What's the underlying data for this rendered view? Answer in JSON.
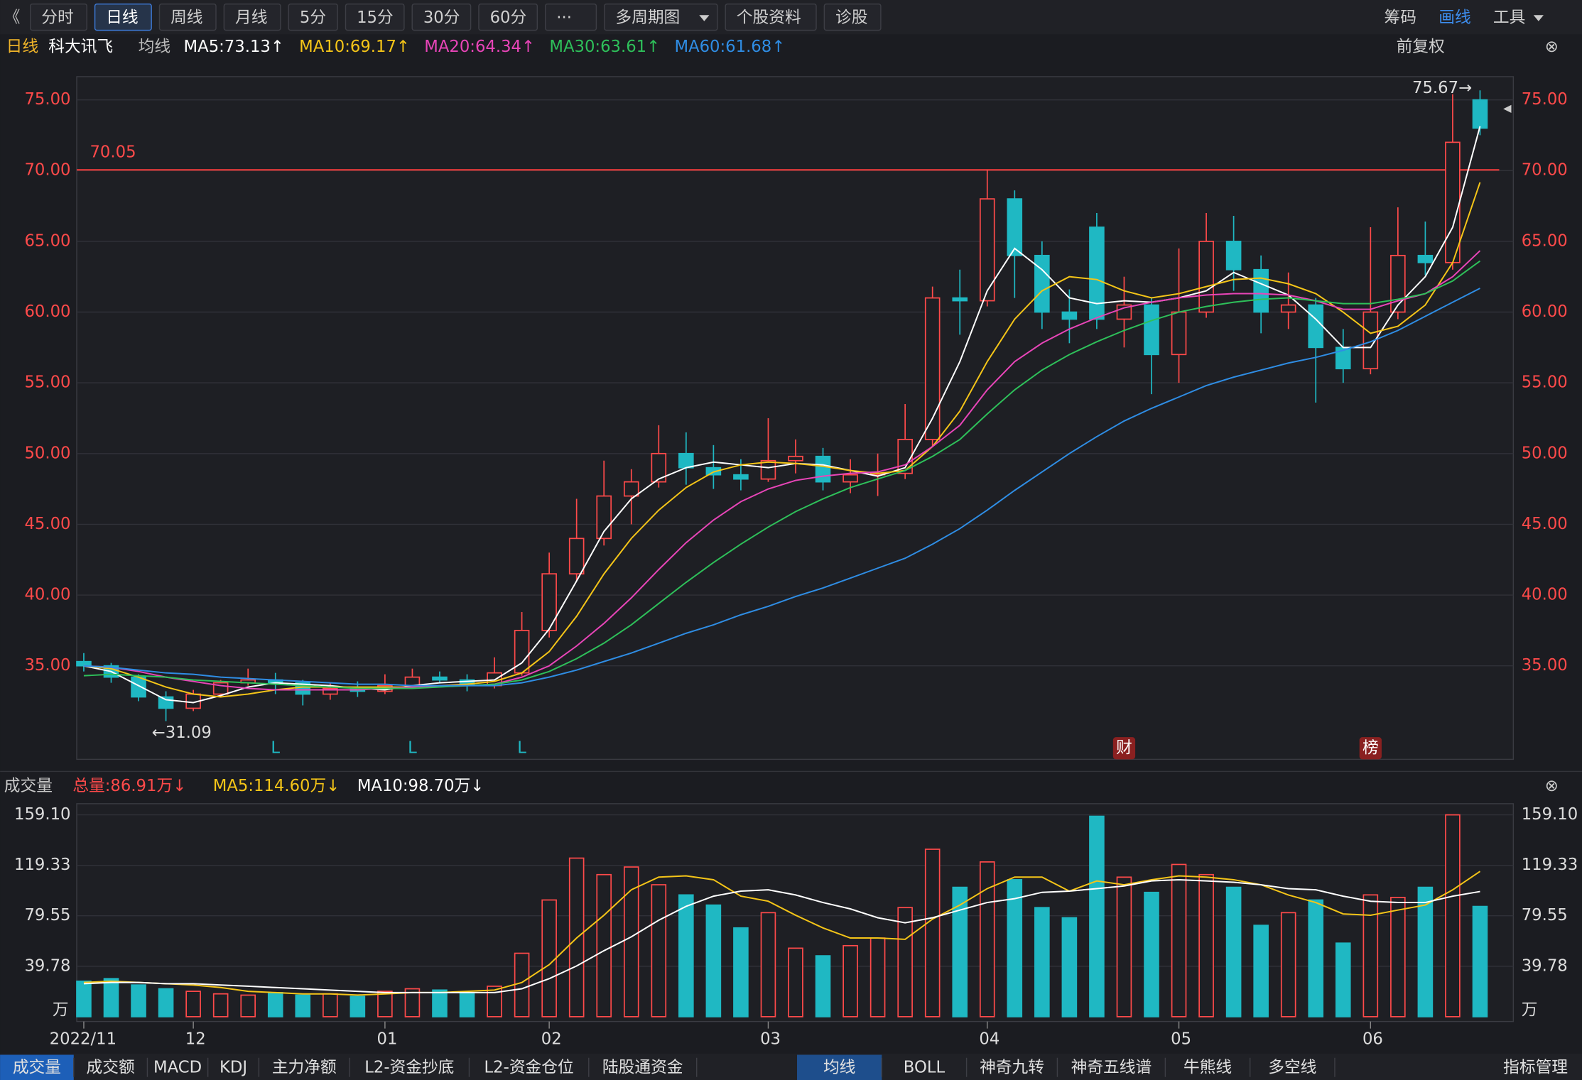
{
  "toolbar": {
    "left": [
      "分时",
      "日线",
      "周线",
      "月线",
      "5分",
      "15分",
      "30分",
      "60分",
      "···",
      "多周期图",
      "个股资料",
      "诊股"
    ],
    "active_index": 1,
    "right": [
      "筹码",
      "画线",
      "工具"
    ],
    "right_active_index": 1
  },
  "adjust": "前复权",
  "bottom_tabs": {
    "left": [
      "成交量",
      "成交额",
      "MACD",
      "KDJ",
      "主力净额",
      "L2-资金抄底",
      "L2-资金仓位",
      "陆股通资金"
    ],
    "right": [
      "均线",
      "BOLL",
      "神奇九转",
      "神奇五线谱",
      "牛熊线",
      "多空线"
    ],
    "manage": "指标管理"
  },
  "chart_data": [
    {
      "type": "candlestick",
      "period": "日线",
      "title": "科大讯飞",
      "ma_title": "均线",
      "up_color": "#ff4a4a",
      "down_color": "#1fb8c3",
      "ylim": [
        28.39,
        76.64
      ],
      "yticks": [
        {
          "value": 35,
          "label": "35.00"
        },
        {
          "value": 40,
          "label": "40.00"
        },
        {
          "value": 45,
          "label": "45.00"
        },
        {
          "value": 50,
          "label": "50.00"
        },
        {
          "value": 55,
          "label": "55.00"
        },
        {
          "value": 60,
          "label": "60.00"
        },
        {
          "value": 65,
          "label": "65.00"
        },
        {
          "value": 70,
          "label": "70.00"
        },
        {
          "value": 75,
          "label": "75.00"
        }
      ],
      "grid": true,
      "hline": 70.05,
      "max_mark": {
        "index": 51,
        "value": 75.67,
        "label": "75.67→"
      },
      "min_mark": {
        "index": 3,
        "value": 31.09,
        "label": "←31.09"
      },
      "events": [
        {
          "index": 7,
          "label": "L"
        },
        {
          "index": 12,
          "label": "L"
        },
        {
          "index": 16,
          "label": "L"
        },
        {
          "index": 38,
          "label": "财"
        },
        {
          "index": 47,
          "label": "榜"
        }
      ],
      "ohlc": [
        [
          35.3,
          35.9,
          34.6,
          35.0
        ],
        [
          35.0,
          35.2,
          33.8,
          34.2
        ],
        [
          34.2,
          34.4,
          32.5,
          32.8
        ],
        [
          32.8,
          33.2,
          31.09,
          32.0
        ],
        [
          32.0,
          33.3,
          31.8,
          33.0
        ],
        [
          33.0,
          34.0,
          32.8,
          33.8
        ],
        [
          33.8,
          34.8,
          33.6,
          34.0
        ],
        [
          34.0,
          34.5,
          33.0,
          33.8
        ],
        [
          33.8,
          34.0,
          32.2,
          33.0
        ],
        [
          33.0,
          33.8,
          32.6,
          33.4
        ],
        [
          33.4,
          33.9,
          32.8,
          33.2
        ],
        [
          33.2,
          34.4,
          33.0,
          33.6
        ],
        [
          33.6,
          34.8,
          33.4,
          34.2
        ],
        [
          34.2,
          34.6,
          33.8,
          34.0
        ],
        [
          34.0,
          34.4,
          33.2,
          33.6
        ],
        [
          33.6,
          35.6,
          33.4,
          34.5
        ],
        [
          34.5,
          38.8,
          34.3,
          37.5
        ],
        [
          37.5,
          43.0,
          37.0,
          41.5
        ],
        [
          41.5,
          46.8,
          41.0,
          44.0
        ],
        [
          44.0,
          49.5,
          43.5,
          47.0
        ],
        [
          47.0,
          48.9,
          45.0,
          48.0
        ],
        [
          48.0,
          52.0,
          47.6,
          50.0
        ],
        [
          50.0,
          51.5,
          47.8,
          49.0
        ],
        [
          49.0,
          50.6,
          47.5,
          48.5
        ],
        [
          48.5,
          49.6,
          47.4,
          48.2
        ],
        [
          48.2,
          52.5,
          48.0,
          49.5
        ],
        [
          49.5,
          51.0,
          48.6,
          49.8
        ],
        [
          49.8,
          50.4,
          47.4,
          48.0
        ],
        [
          48.0,
          49.6,
          47.2,
          48.5
        ],
        [
          48.5,
          50.0,
          47.0,
          48.6
        ],
        [
          48.6,
          53.5,
          48.2,
          51.0
        ],
        [
          51.0,
          61.8,
          50.5,
          61.0
        ],
        [
          61.0,
          63.0,
          58.4,
          60.8
        ],
        [
          60.8,
          70.05,
          60.4,
          68.0
        ],
        [
          68.0,
          68.6,
          61.0,
          64.0
        ],
        [
          64.0,
          65.0,
          58.8,
          60.0
        ],
        [
          60.0,
          61.6,
          57.8,
          59.5
        ],
        [
          66.0,
          67.0,
          58.8,
          59.5
        ],
        [
          59.5,
          62.5,
          57.5,
          60.5
        ],
        [
          60.5,
          61.0,
          54.2,
          57.0
        ],
        [
          57.0,
          64.5,
          55.0,
          60.0
        ],
        [
          60.0,
          67.0,
          59.6,
          65.0
        ],
        [
          65.0,
          66.8,
          61.5,
          63.0
        ],
        [
          63.0,
          64.0,
          58.5,
          60.0
        ],
        [
          60.0,
          62.8,
          58.8,
          60.5
        ],
        [
          60.5,
          61.0,
          53.6,
          57.5
        ],
        [
          57.5,
          58.8,
          55.0,
          56.0
        ],
        [
          56.0,
          66.0,
          55.6,
          60.0
        ],
        [
          60.0,
          67.4,
          59.5,
          64.0
        ],
        [
          64.0,
          66.4,
          62.6,
          63.5
        ],
        [
          63.5,
          75.4,
          63.0,
          72.0
        ],
        [
          75.0,
          75.67,
          72.5,
          73.0
        ]
      ],
      "series": [
        {
          "name": "MA5:73.13↑",
          "color": "#ffffff",
          "values": [
            35.0,
            34.6,
            33.6,
            32.6,
            32.4,
            32.9,
            33.5,
            33.8,
            33.7,
            33.6,
            33.4,
            33.3,
            33.6,
            33.8,
            33.9,
            34.0,
            35.2,
            37.6,
            41.0,
            44.5,
            46.8,
            48.2,
            49.0,
            49.4,
            49.2,
            49.0,
            49.3,
            49.2,
            48.8,
            48.4,
            49.0,
            52.5,
            56.5,
            61.5,
            64.5,
            63.0,
            61.0,
            60.6,
            60.8,
            60.7,
            61.0,
            61.5,
            62.8,
            62.0,
            61.2,
            59.5,
            57.5,
            57.5,
            60.5,
            62.5,
            66.0,
            73.13
          ]
        },
        {
          "name": "MA10:69.17↑",
          "color": "#f5c518",
          "values": [
            35.0,
            34.8,
            34.2,
            33.5,
            33.0,
            32.8,
            33.0,
            33.3,
            33.5,
            33.5,
            33.5,
            33.5,
            33.5,
            33.6,
            33.7,
            33.9,
            34.5,
            36.0,
            38.5,
            41.5,
            44.0,
            46.0,
            47.6,
            48.7,
            49.2,
            49.4,
            49.3,
            49.1,
            48.8,
            48.6,
            48.8,
            50.5,
            53.0,
            56.5,
            59.5,
            61.5,
            62.5,
            62.3,
            61.5,
            61.0,
            61.3,
            61.8,
            62.3,
            62.4,
            62.0,
            61.3,
            60.0,
            58.5,
            59.0,
            60.5,
            63.5,
            69.17
          ]
        },
        {
          "name": "MA20:64.34↑",
          "color": "#e845b8",
          "values": [
            35.0,
            34.9,
            34.6,
            34.2,
            33.9,
            33.6,
            33.4,
            33.3,
            33.3,
            33.3,
            33.3,
            33.4,
            33.5,
            33.6,
            33.6,
            33.7,
            34.2,
            35.0,
            36.4,
            38.0,
            39.8,
            41.8,
            43.7,
            45.3,
            46.6,
            47.5,
            48.1,
            48.4,
            48.6,
            48.7,
            49.2,
            50.5,
            52.0,
            54.5,
            56.5,
            57.8,
            58.8,
            59.6,
            60.3,
            60.7,
            61.0,
            61.2,
            61.3,
            61.3,
            61.2,
            60.8,
            60.2,
            60.2,
            60.8,
            61.3,
            62.5,
            64.34
          ]
        },
        {
          "name": "MA30:63.61↑",
          "color": "#2ec05a",
          "values": [
            34.3,
            34.4,
            34.3,
            34.2,
            34.0,
            33.9,
            33.8,
            33.7,
            33.6,
            33.5,
            33.4,
            33.4,
            33.4,
            33.5,
            33.6,
            33.7,
            34.0,
            34.6,
            35.5,
            36.6,
            37.9,
            39.4,
            40.9,
            42.3,
            43.6,
            44.8,
            45.9,
            46.8,
            47.6,
            48.2,
            48.8,
            49.8,
            51.0,
            52.8,
            54.5,
            55.9,
            57.0,
            57.9,
            58.7,
            59.4,
            60.0,
            60.4,
            60.7,
            60.9,
            61.0,
            60.8,
            60.6,
            60.6,
            60.9,
            61.3,
            62.2,
            63.61
          ]
        },
        {
          "name": "MA60:61.68↑",
          "color": "#2f8de4",
          "values": [
            35.0,
            34.9,
            34.7,
            34.5,
            34.4,
            34.2,
            34.1,
            34.0,
            33.9,
            33.8,
            33.7,
            33.7,
            33.6,
            33.6,
            33.6,
            33.6,
            33.8,
            34.2,
            34.7,
            35.3,
            35.9,
            36.6,
            37.3,
            37.9,
            38.6,
            39.2,
            39.9,
            40.5,
            41.2,
            41.9,
            42.6,
            43.6,
            44.7,
            46.0,
            47.4,
            48.7,
            50.0,
            51.2,
            52.3,
            53.2,
            54.0,
            54.8,
            55.4,
            55.9,
            56.4,
            56.8,
            57.3,
            57.9,
            58.7,
            59.7,
            60.7,
            61.68
          ]
        }
      ]
    },
    {
      "type": "bar",
      "title": "成交量",
      "unit": "万",
      "categories": [
        "2022/11",
        null,
        null,
        null,
        "12",
        null,
        null,
        null,
        null,
        null,
        null,
        "01",
        null,
        null,
        null,
        null,
        null,
        "02",
        null,
        null,
        null,
        null,
        null,
        null,
        null,
        "03",
        null,
        null,
        null,
        null,
        null,
        null,
        null,
        "04",
        null,
        null,
        null,
        null,
        null,
        null,
        "05",
        null,
        null,
        null,
        null,
        null,
        null,
        "06",
        null,
        null,
        null,
        null
      ],
      "ylim": [
        -3.8,
        167.9
      ],
      "yticks": [
        {
          "value": 39.78,
          "label": "39.78"
        },
        {
          "value": 79.55,
          "label": "79.55"
        },
        {
          "value": 119.33,
          "label": "119.33"
        },
        {
          "value": 159.1,
          "label": "159.10"
        }
      ],
      "grid": true,
      "series": [
        {
          "name": "总量:86.91万↓",
          "color": "#ff4a4a",
          "values": [
            28,
            30,
            25,
            22,
            20,
            18,
            17,
            19,
            17,
            18,
            16,
            20,
            22,
            21,
            18,
            24,
            50,
            92,
            125,
            112,
            118,
            104,
            96,
            88,
            70,
            82,
            54,
            48,
            56,
            62,
            86,
            132,
            102,
            122,
            108,
            86,
            78,
            158,
            110,
            98,
            120,
            112,
            102,
            72,
            82,
            92,
            58,
            96,
            94,
            102,
            159.1,
            86.91
          ]
        },
        {
          "name": "MA5:114.60万↓",
          "color": "#f5c518",
          "values": [
            27,
            28,
            27,
            26,
            25,
            23,
            20,
            19,
            18,
            18,
            17,
            18,
            19,
            19,
            20,
            21,
            27,
            41,
            62,
            80,
            100,
            110,
            111,
            108,
            95,
            91,
            80,
            70,
            62,
            62,
            61,
            77,
            88,
            101,
            110,
            110,
            99,
            107,
            104,
            108,
            111,
            110,
            108,
            104,
            96,
            90,
            81,
            80,
            84,
            88,
            100,
            114.6
          ]
        },
        {
          "name": "MA10:98.70万↓",
          "color": "#ffffff",
          "values": [
            26,
            27,
            27,
            26,
            26,
            25,
            24,
            23,
            22,
            21,
            20,
            19,
            19,
            19,
            19,
            19,
            22,
            30,
            40,
            52,
            63,
            76,
            87,
            95,
            99,
            100,
            96,
            90,
            85,
            78,
            74,
            78,
            84,
            90,
            93,
            98,
            99,
            101,
            103,
            107,
            108,
            107,
            106,
            104,
            101,
            100,
            95,
            91,
            90,
            90,
            95,
            98.7
          ]
        }
      ]
    }
  ]
}
